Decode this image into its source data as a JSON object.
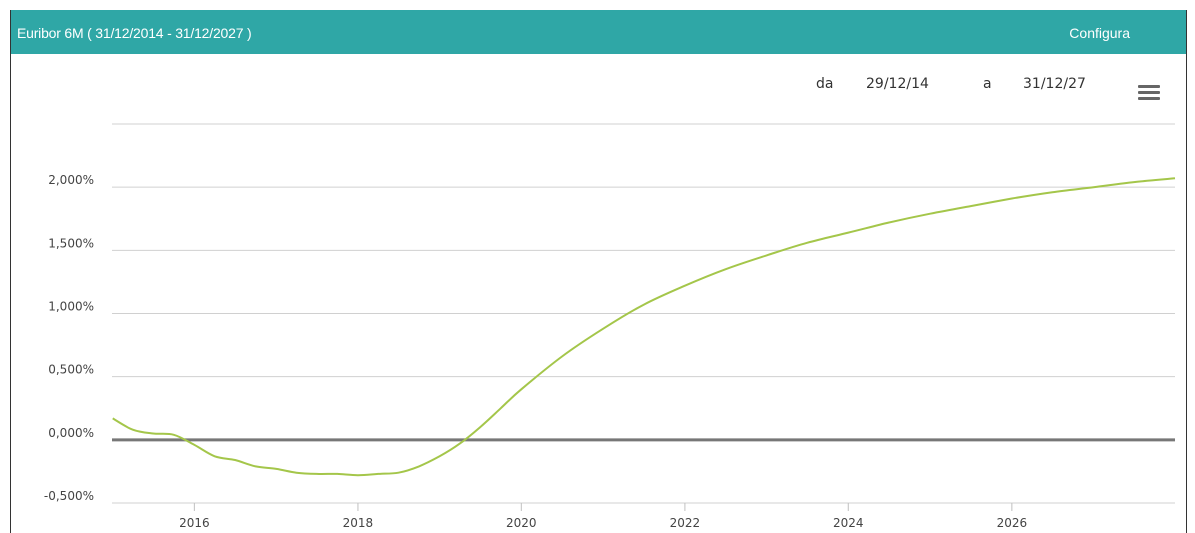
{
  "header": {
    "title": "Euribor 6M ( 31/12/2014 - 31/12/2027 )",
    "configure_label": "Configura"
  },
  "range": {
    "from_label": "da",
    "from_value": "29/12/14",
    "to_label": "a",
    "to_value": "31/12/27"
  },
  "icons": {
    "menu": "hamburger-menu-icon"
  },
  "colors": {
    "header": "#2fa7a6",
    "series": "#a4c64a",
    "zero_line": "#777777"
  },
  "chart_data": {
    "type": "line",
    "title": "Euribor 6M ( 31/12/2014 - 31/12/2027 )",
    "xlim": [
      "2014-12-29",
      "2027-12-31"
    ],
    "ylim": [
      -0.5,
      2.5
    ],
    "x_ticks": [
      2016,
      2018,
      2020,
      2022,
      2024,
      2026
    ],
    "y_ticks": [
      -0.5,
      0,
      0.5,
      1,
      1.5,
      2
    ],
    "y_tick_labels": [
      "-0,500%",
      "0,000%",
      "0,500%",
      "1,000%",
      "1,500%",
      "2,000%"
    ],
    "grid": true,
    "series": [
      {
        "x": [
          "2015-01-01",
          "2015-04-01",
          "2015-07-01",
          "2015-10-01",
          "2016-01-01",
          "2016-04-01",
          "2016-07-01",
          "2016-10-01",
          "2017-01-01",
          "2017-04-01",
          "2017-07-01",
          "2017-10-01",
          "2018-01-01",
          "2018-04-01",
          "2018-07-01",
          "2018-10-01",
          "2019-01-01",
          "2019-04-01",
          "2019-07-01",
          "2019-10-01",
          "2020-01-01",
          "2020-07-01",
          "2021-01-01",
          "2021-07-01",
          "2022-01-01",
          "2022-07-01",
          "2023-01-01",
          "2023-07-01",
          "2024-01-01",
          "2024-07-01",
          "2025-01-01",
          "2025-07-01",
          "2026-01-01",
          "2026-07-01",
          "2027-01-01",
          "2027-07-01",
          "2027-12-31"
        ],
        "values": [
          0.17,
          0.08,
          0.05,
          0.04,
          -0.04,
          -0.13,
          -0.16,
          -0.21,
          -0.23,
          -0.26,
          -0.27,
          -0.27,
          -0.28,
          -0.27,
          -0.26,
          -0.21,
          -0.13,
          -0.03,
          0.1,
          0.25,
          0.4,
          0.66,
          0.88,
          1.07,
          1.22,
          1.35,
          1.46,
          1.56,
          1.64,
          1.72,
          1.79,
          1.85,
          1.91,
          1.96,
          2.0,
          2.04,
          2.07
        ]
      }
    ]
  }
}
